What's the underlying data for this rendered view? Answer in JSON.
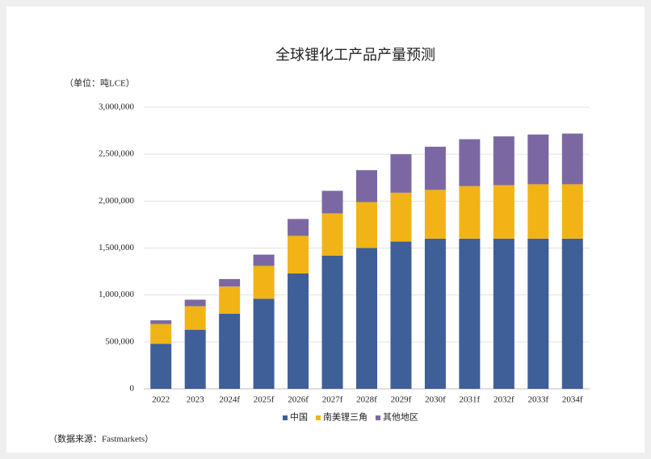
{
  "chart_data": {
    "type": "stacked_bar",
    "title": "全球锂化工产品产量预测",
    "unit_label": "（单位：吨LCE）",
    "source": "（数据来源：Fastmarkets）",
    "categories": [
      "2022",
      "2023",
      "2024f",
      "2025f",
      "2026f",
      "2027f",
      "2028f",
      "2029f",
      "2030f",
      "2031f",
      "2032f",
      "2033f",
      "2034f"
    ],
    "series": [
      {
        "name": "中国",
        "color": "#3e5f97",
        "values": [
          480000,
          630000,
          800000,
          960000,
          1230000,
          1420000,
          1500000,
          1570000,
          1600000,
          1600000,
          1600000,
          1600000,
          1600000
        ]
      },
      {
        "name": "南美锂三角",
        "color": "#f2b316",
        "values": [
          210000,
          250000,
          290000,
          350000,
          400000,
          450000,
          490000,
          520000,
          520000,
          560000,
          570000,
          580000,
          580000
        ]
      },
      {
        "name": "其他地区",
        "color": "#7b68a3",
        "values": [
          40000,
          70000,
          80000,
          120000,
          180000,
          240000,
          340000,
          410000,
          460000,
          500000,
          520000,
          530000,
          540000
        ]
      }
    ],
    "ylim": [
      0,
      3000000
    ],
    "yticks": [
      0,
      {
        "value": 500000,
        "label": "500,000"
      },
      {
        "value": 1000000,
        "label": "1,000,000"
      },
      {
        "value": 1500000,
        "label": "1,500,000"
      },
      {
        "value": 2000000,
        "label": "2,000,000"
      },
      {
        "value": 2500000,
        "label": "2,500,000"
      },
      {
        "value": 3000000,
        "label": "3,000,000"
      }
    ],
    "grid": true
  }
}
